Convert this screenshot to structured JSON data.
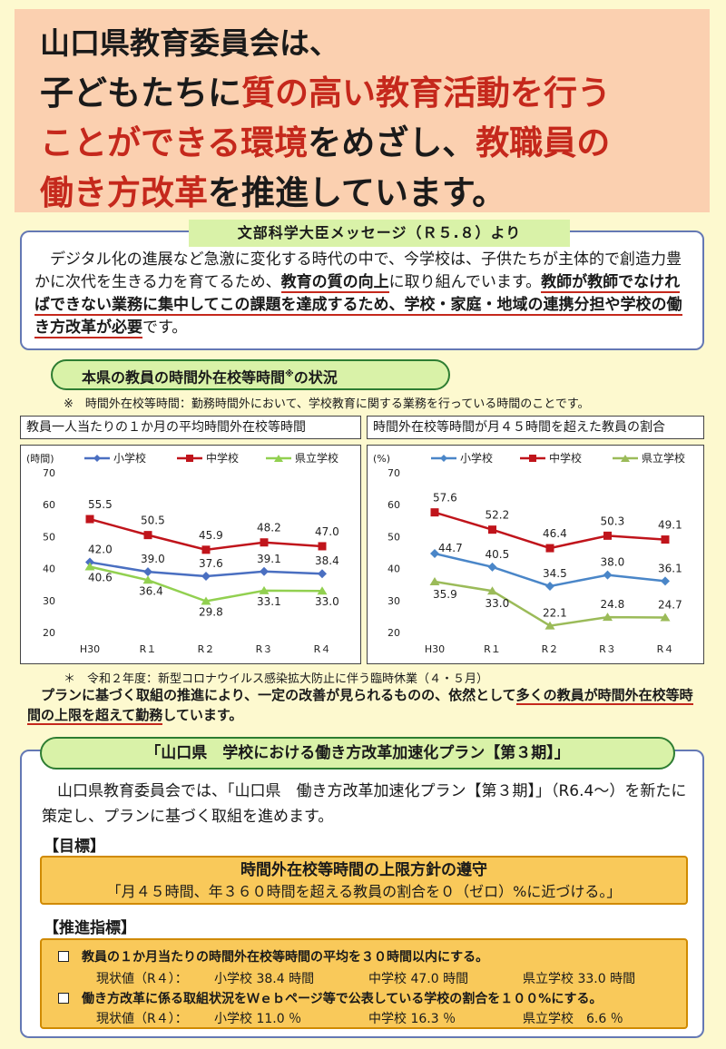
{
  "headline": {
    "line1": "山口県教育委員会は、",
    "line2a": "子どもたちに",
    "line2b": "質の高い教育活動を行う",
    "line3a": "ことができる環境",
    "line3b": "をめざし、",
    "line3c": "教職員の",
    "line4a": "働き方改革",
    "line4b": "を推進しています。"
  },
  "message": {
    "title": "文部科学大臣メッセージ（Ｒ５.８）より",
    "p1": "　デジタル化の進展など急激に変化する時代の中で、今学校は、子供たちが主体的で創造力豊かに次代を生きる力を育てるため、",
    "p1u": "教育の質の向上",
    "p2": "に取り組んでいます。",
    "p2u": "教師が教師でなければできない業務に集中してこの課題を達成するため、学校・家庭・地域の連携分担や学校の働き方改革が必要",
    "p3": "です。"
  },
  "section": {
    "title": "本県の教員の時間外在校等時間",
    "title_mark": "※",
    "title_end": "の状況",
    "note": "※　時間外在校等時間：勤務時間外において、学校教育に関する業務を行っている時間のことです。"
  },
  "chart_data": [
    {
      "type": "line",
      "title": "教員一人当たりの１か月の平均時間外在校等時間",
      "ylabel": "(時間)",
      "categories": [
        "H30",
        "R１",
        "R２",
        "R３",
        "R４"
      ],
      "ylim": [
        20,
        70
      ],
      "yticks": [
        20,
        30,
        40,
        50,
        60,
        70
      ],
      "legend": "top",
      "grid": false,
      "series": [
        {
          "name": "小学校",
          "color": "#4a6fc1",
          "values": [
            42.0,
            39.0,
            37.6,
            39.1,
            38.4
          ]
        },
        {
          "name": "中学校",
          "color": "#c0141b",
          "values": [
            55.5,
            50.5,
            45.9,
            48.2,
            47.0
          ]
        },
        {
          "name": "県立学校",
          "color": "#92d050",
          "values": [
            40.6,
            36.4,
            29.8,
            33.1,
            33.0
          ]
        }
      ]
    },
    {
      "type": "line",
      "title": "時間外在校等時間が月４５時間を超えた教員の割合",
      "ylabel": "(%)",
      "categories": [
        "H30",
        "R１",
        "R２",
        "R３",
        "R４"
      ],
      "ylim": [
        20,
        70
      ],
      "yticks": [
        20,
        30,
        40,
        50,
        60,
        70
      ],
      "legend": "top",
      "grid": false,
      "series": [
        {
          "name": "小学校",
          "color": "#4a86c8",
          "values": [
            44.7,
            40.5,
            34.5,
            38.0,
            36.1
          ]
        },
        {
          "name": "中学校",
          "color": "#c0141b",
          "values": [
            57.6,
            52.2,
            46.4,
            50.3,
            49.1
          ]
        },
        {
          "name": "県立学校",
          "color": "#9bbb59",
          "values": [
            35.9,
            33.0,
            22.1,
            24.8,
            24.7
          ]
        }
      ]
    }
  ],
  "chart_labels": [
    {
      "s0": [
        "42.0",
        "39.0",
        "37.6",
        "39.1",
        "38.4"
      ],
      "s1": [
        "55.5",
        "50.5",
        "45.9",
        "48.2",
        "47.0"
      ],
      "s2": [
        "40.6",
        "36.4",
        "29.8",
        "33.1",
        "33.0"
      ]
    },
    {
      "s0": [
        "44.7",
        "40.5",
        "34.5",
        "38.0",
        "36.1"
      ],
      "s1": [
        "57.6",
        "52.2",
        "46.4",
        "50.3",
        "49.1"
      ],
      "s2": [
        "35.9",
        "33.0",
        "22.1",
        "24.8",
        "24.7"
      ]
    }
  ],
  "footnote": "＊　令和２年度：新型コロナウイルス感染拡大防止に伴う臨時休業（４・５月）",
  "summary": {
    "a": "　プランに基づく取組の推進により、一定の改善が見られるものの、依然として",
    "b": "多くの教員が時間外在校等時間の上限を超えて勤務",
    "c": "しています。"
  },
  "plan": {
    "title": "「山口県　学校における働き方改革加速化プラン【第３期】」",
    "intro": "　山口県教育委員会では、「山口県　働き方改革加速化プラン【第３期】」（R6.4～）を新たに策定し、プランに基づく取組を進めます。",
    "goal_heading": "【目標】",
    "goal_title": "時間外在校等時間の上限方針の遵守",
    "goal_text": "「月４５時間、年３６０時間を超える教員の割合を０（ゼロ）%に近づける。」",
    "ind_heading": "【推進指標】",
    "ind1": "教員の１か月当たりの時間外在校等時間の平均を３０時間以内にする。",
    "cur1_label": "現状値（R４）：",
    "cur1_a": "小学校 38.4 時間",
    "cur1_b": "中学校 47.0 時間",
    "cur1_c": "県立学校 33.0 時間",
    "ind2": "働き方改革に係る取組状況をＷｅｂページ等で公表している学校の割合を１００%にする。",
    "cur2_label": "現状値（R４）：",
    "cur2_a": "小学校 11.0 ％",
    "cur2_b": "中学校 16.3 ％",
    "cur2_c": "県立学校　6.6 ％"
  }
}
